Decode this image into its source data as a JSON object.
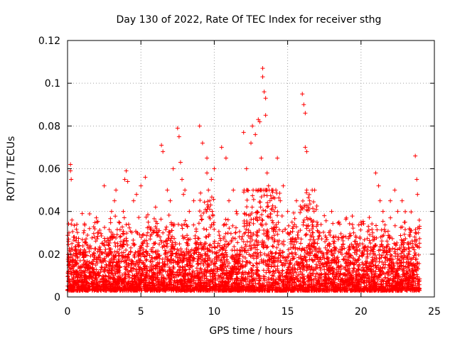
{
  "chart_data": {
    "type": "scatter",
    "title": "Day 130 of 2022, Rate Of TEC Index for receiver sthg",
    "xlabel": "GPS time / hours",
    "ylabel": "ROTI / TECUs",
    "xlim": [
      0,
      25
    ],
    "ylim": [
      0,
      0.12
    ],
    "xticks": [
      0,
      5,
      10,
      15,
      20,
      25
    ],
    "yticks": [
      0,
      0.02,
      0.04,
      0.06,
      0.08,
      0.1,
      0.12
    ],
    "xtick_labels": [
      "0",
      "5",
      "10",
      "15",
      "20",
      "25"
    ],
    "ytick_labels": [
      "0",
      "0.02",
      "0.04",
      "0.06",
      "0.08",
      "0.1",
      "0.12"
    ],
    "grid": true,
    "marker": "+",
    "color": "#ff0000",
    "series": [
      {
        "name": "ROTI",
        "x": [
          0.1,
          0.2,
          0.2,
          0.25,
          0.3,
          0.3,
          1.0,
          1.1,
          1.5,
          2.0,
          2.1,
          2.5,
          3.0,
          3.2,
          3.3,
          3.5,
          3.8,
          3.9,
          4.0,
          4.1,
          4.5,
          4.7,
          5.0,
          5.3,
          5.5,
          6.0,
          6.4,
          6.5,
          6.5,
          6.8,
          7.0,
          7.2,
          7.5,
          7.6,
          7.7,
          7.8,
          7.9,
          8.0,
          8.3,
          8.6,
          9.0,
          9.2,
          9.5,
          9.5,
          9.6,
          9.7,
          9.8,
          10.0,
          10.5,
          10.8,
          11.0,
          11.3,
          11.5,
          12.0,
          12.2,
          12.5,
          12.6,
          12.8,
          13.0,
          13.1,
          13.2,
          13.3,
          13.3,
          13.4,
          13.5,
          13.5,
          13.6,
          13.7,
          13.8,
          14.0,
          14.3,
          14.5,
          14.7,
          15.0,
          15.3,
          15.6,
          16.0,
          16.1,
          16.2,
          16.2,
          16.3,
          16.3,
          16.4,
          16.5,
          16.8,
          17.0,
          17.5,
          18.0,
          18.5,
          19.0,
          19.5,
          20.0,
          20.5,
          21.0,
          21.2,
          21.3,
          21.5,
          22.0,
          22.3,
          22.5,
          22.8,
          23.0,
          23.3,
          23.5,
          23.7,
          23.8,
          23.85,
          23.9
        ],
        "y": [
          0.03,
          0.062,
          0.059,
          0.055,
          0.036,
          0.025,
          0.039,
          0.03,
          0.032,
          0.035,
          0.03,
          0.052,
          0.04,
          0.045,
          0.05,
          0.035,
          0.04,
          0.055,
          0.059,
          0.054,
          0.045,
          0.048,
          0.052,
          0.056,
          0.035,
          0.042,
          0.071,
          0.068,
          0.03,
          0.05,
          0.045,
          0.06,
          0.079,
          0.075,
          0.063,
          0.055,
          0.048,
          0.05,
          0.04,
          0.045,
          0.08,
          0.072,
          0.065,
          0.058,
          0.05,
          0.045,
          0.055,
          0.06,
          0.07,
          0.065,
          0.045,
          0.05,
          0.04,
          0.077,
          0.06,
          0.072,
          0.08,
          0.076,
          0.083,
          0.082,
          0.065,
          0.107,
          0.103,
          0.096,
          0.093,
          0.085,
          0.058,
          0.052,
          0.045,
          0.05,
          0.065,
          0.045,
          0.052,
          0.04,
          0.035,
          0.045,
          0.095,
          0.09,
          0.086,
          0.07,
          0.068,
          0.05,
          0.042,
          0.045,
          0.04,
          0.035,
          0.038,
          0.04,
          0.035,
          0.037,
          0.03,
          0.035,
          0.033,
          0.058,
          0.052,
          0.045,
          0.04,
          0.045,
          0.05,
          0.04,
          0.045,
          0.035,
          0.032,
          0.025,
          0.066,
          0.055,
          0.048,
          0.03
        ]
      }
    ],
    "dense_band": {
      "x_range": [
        0,
        24
      ],
      "y_min": 0.003,
      "y_typical_max": 0.025,
      "description_values_only": "bulk of points between 0.005 and 0.02 TECUs"
    }
  }
}
